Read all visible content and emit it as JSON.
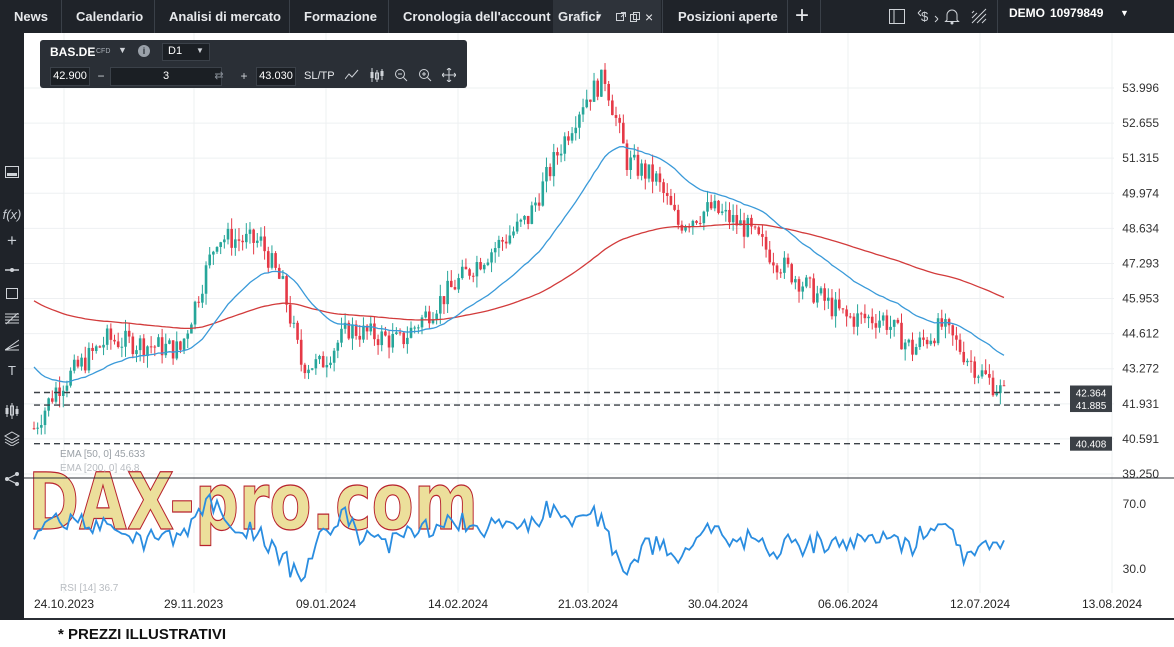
{
  "topbar": {
    "tabs": [
      "News",
      "Calendario",
      "Analisi di mercato",
      "Formazione",
      "Cronologia dell'account"
    ],
    "active_tab": "Grafici",
    "open_tab": "Posizioni aperte",
    "account_mode": "DEMO",
    "account_number": "10979849"
  },
  "toolbox": {
    "symbol": "BAS.DE",
    "instrument_type": "CFD",
    "timeframe": "D1",
    "bid": "42.900",
    "volume": "3",
    "ask": "43.030",
    "sltp_label": "SL/TP"
  },
  "chart": {
    "y_ticks": [
      "53.996",
      "52.655",
      "51.315",
      "49.974",
      "48.634",
      "47.293",
      "45.953",
      "44.612",
      "43.272",
      "41.931",
      "40.591",
      "39.250"
    ],
    "rsi_ticks": [
      "70.0",
      "30.0"
    ],
    "x_ticks": [
      "24.10.2023",
      "29.11.2023",
      "09.01.2024",
      "14.02.2024",
      "21.03.2024",
      "30.04.2024",
      "06.06.2024",
      "12.07.2024",
      "13.08.2024"
    ],
    "level_labels": [
      "42.364",
      "41.885",
      "40.408"
    ],
    "ema_legend_1": "EMA [50, 0] 45.633",
    "ema_legend_2": "EMA [200, 0] 46.8",
    "rsi_legend": "RSI [14] 36.7",
    "watermark": "DAX-pro.com",
    "colors": {
      "up": "#26a69a",
      "down": "#e53946",
      "ema50": "#3a9ad9",
      "ema200": "#d23b3b",
      "rsi": "#2a8de0",
      "levels": "#3c4147"
    }
  },
  "chart_data": {
    "type": "candlestick",
    "title": "BAS.DE",
    "timeframe": "D1",
    "ylim": [
      39.25,
      55.1
    ],
    "price_endpoints": [
      {
        "date": "24.10.2023",
        "close": 41.5
      },
      {
        "date": "21.03.2024",
        "high": 54.7
      },
      {
        "date": "12.07.2024",
        "close": 42.3
      }
    ],
    "horizontal_levels": [
      42.364,
      41.885,
      40.408
    ],
    "ema50_last": 45.633,
    "rsi_last": 36.7,
    "rsi_levels": [
      70.0,
      30.0
    ]
  },
  "footer": {
    "disclaimer": "* PREZZI ILLUSTRATIVI"
  }
}
